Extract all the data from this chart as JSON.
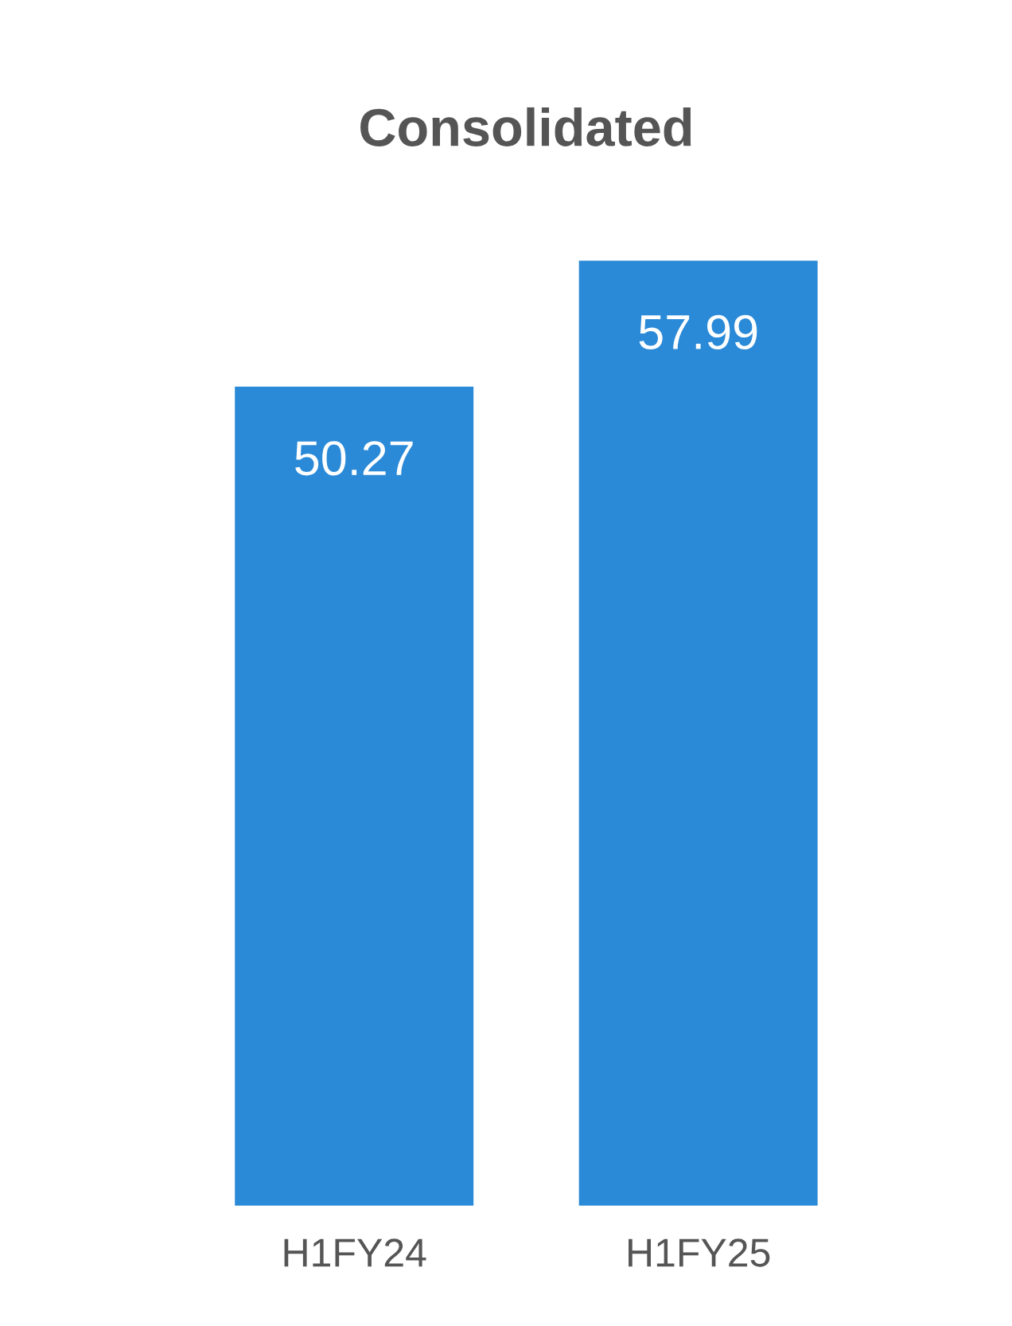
{
  "chart_data": {
    "type": "bar",
    "title": "Consolidated",
    "categories": [
      "H1FY24",
      "H1FY25"
    ],
    "values": [
      50.27,
      57.99
    ],
    "color": "#2a8ad8",
    "data_labels": true,
    "grid": false,
    "legend": false
  }
}
